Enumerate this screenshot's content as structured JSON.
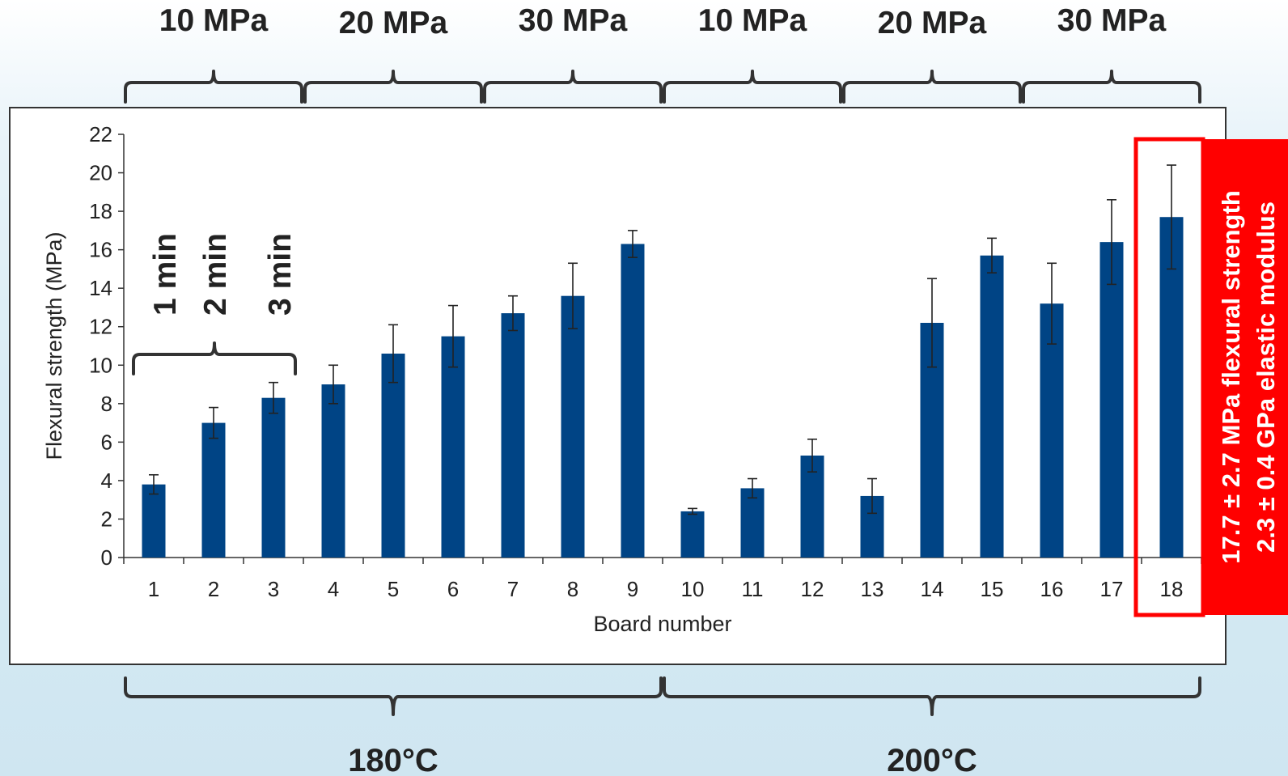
{
  "chart_data": {
    "type": "bar",
    "categories": [
      "1",
      "2",
      "3",
      "4",
      "5",
      "6",
      "7",
      "8",
      "9",
      "10",
      "11",
      "12",
      "13",
      "14",
      "15",
      "16",
      "17",
      "18"
    ],
    "values": [
      3.8,
      7.0,
      8.3,
      9.0,
      10.6,
      11.5,
      12.7,
      13.6,
      16.3,
      2.4,
      3.6,
      5.3,
      3.2,
      12.2,
      15.7,
      13.2,
      16.4,
      17.7
    ],
    "errors": [
      0.5,
      0.8,
      0.8,
      1.0,
      1.5,
      1.6,
      0.9,
      1.7,
      0.7,
      0.15,
      0.5,
      0.85,
      0.9,
      2.3,
      0.9,
      2.1,
      2.2,
      2.7
    ],
    "xlabel": "Board number",
    "ylabel": "Flexural strength (MPa)",
    "ylim": [
      0,
      22
    ],
    "yticks": [
      "0",
      "2",
      "4",
      "6",
      "8",
      "10",
      "12",
      "14",
      "16",
      "18",
      "20",
      "22"
    ],
    "grid": false,
    "bar_color": "#004485",
    "pressure_labels": [
      "10 MPa",
      "20 MPa",
      "30 MPa",
      "10 MPa",
      "20 MPa",
      "30 MPa"
    ],
    "time_labels": [
      "1 min",
      "2 min",
      "3 min"
    ],
    "temperature_labels": [
      "180°C",
      "200°C"
    ],
    "highlight": {
      "board": "18",
      "color": "#ff0000",
      "lines": [
        "17.7 ± 2.7 MPa flexural strength",
        "2.3 ± 0.4 GPa elastic modulus"
      ]
    }
  }
}
